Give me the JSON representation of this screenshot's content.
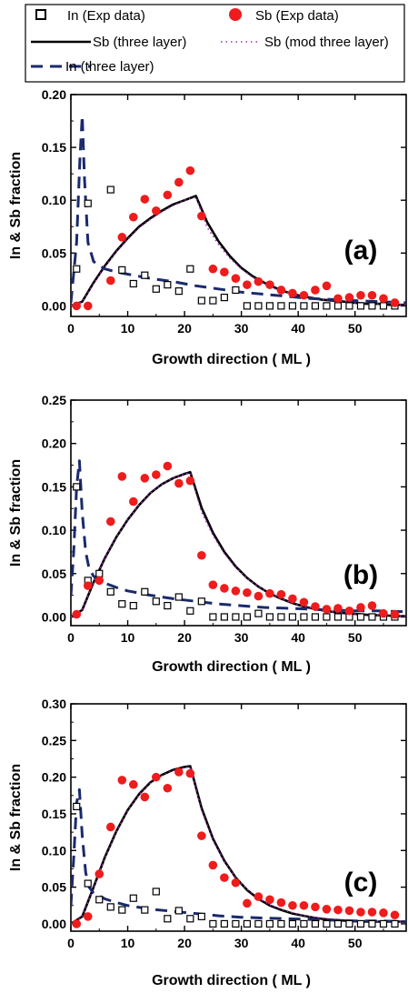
{
  "legend": {
    "entries": [
      {
        "label": "In (Exp data)",
        "marker": "open-square",
        "color": "#000000"
      },
      {
        "label": "Sb (Exp data)",
        "marker": "filled-circle",
        "color": "#ee1c1c"
      },
      {
        "label": "Sb (three layer)",
        "line": "solid",
        "color": "#000000"
      },
      {
        "label": "Sb (mod three layer)",
        "line": "dotted",
        "color": "#9b2fae"
      },
      {
        "label": "In (three layer)",
        "line": "dashed",
        "color": "#1a2a6c"
      }
    ]
  },
  "chart_data": [
    {
      "type": "line",
      "panel_label": "(a)",
      "xlabel": "Growth direction ( ML )",
      "ylabel": "In & Sb fraction",
      "xlim": [
        0,
        59
      ],
      "ylim": [
        -0.01,
        0.2
      ],
      "x_ticks": [
        0,
        10,
        20,
        30,
        40,
        50
      ],
      "y_ticks": [
        0.0,
        0.05,
        0.1,
        0.15,
        0.2
      ],
      "y_tick_labels": [
        "0.00",
        "0.05",
        "0.10",
        "0.15",
        "0.20"
      ],
      "series": [
        {
          "name": "In (Exp data)",
          "kind": "scatter",
          "marker": "open-square",
          "x": [
            1,
            3,
            7,
            9,
            11,
            13,
            15,
            17,
            19,
            21,
            23,
            25,
            27,
            29,
            31,
            33,
            35,
            37,
            39,
            41,
            43,
            45,
            47,
            49,
            51,
            53,
            55,
            57
          ],
          "y": [
            0.035,
            0.097,
            0.11,
            0.034,
            0.021,
            0.029,
            0.016,
            0.02,
            0.014,
            0.035,
            0.005,
            0.005,
            0.008,
            0.015,
            0,
            0,
            0,
            0,
            0,
            0,
            0,
            0,
            0,
            0,
            0,
            0,
            0,
            0
          ]
        },
        {
          "name": "Sb (Exp data)",
          "kind": "scatter",
          "marker": "filled-circle",
          "x": [
            1,
            3,
            7,
            9,
            11,
            13,
            15,
            17,
            19,
            21,
            23,
            25,
            27,
            29,
            31,
            33,
            35,
            37,
            39,
            41,
            43,
            45,
            47,
            49,
            51,
            53,
            55,
            57
          ],
          "y": [
            0,
            0,
            0.024,
            0.065,
            0.084,
            0.101,
            0.09,
            0.105,
            0.117,
            0.128,
            0.085,
            0.035,
            0.032,
            0.026,
            0.02,
            0.023,
            0.02,
            0.015,
            0.012,
            0.01,
            0.015,
            0.019,
            0.007,
            0.008,
            0.01,
            0.01,
            0.007,
            0.003
          ]
        },
        {
          "name": "Sb (three layer)",
          "kind": "line",
          "style": "solid",
          "x": [
            0,
            2,
            4,
            6,
            8,
            10,
            12,
            14,
            16,
            18,
            20,
            22,
            24,
            26,
            28,
            30,
            32,
            34,
            36,
            38,
            40,
            42,
            44,
            46,
            48,
            50,
            52,
            54,
            56,
            58,
            59
          ],
          "y": [
            0,
            0.004,
            0.022,
            0.038,
            0.052,
            0.064,
            0.075,
            0.083,
            0.09,
            0.096,
            0.1,
            0.104,
            0.079,
            0.061,
            0.047,
            0.036,
            0.028,
            0.022,
            0.017,
            0.013,
            0.01,
            0.008,
            0.006,
            0.005,
            0.004,
            0.003,
            0.002,
            0.002,
            0.001,
            0.001,
            0.001
          ]
        },
        {
          "name": "Sb (mod three layer)",
          "kind": "line",
          "style": "dotted",
          "x": [
            0,
            2,
            4,
            6,
            8,
            10,
            12,
            14,
            16,
            18,
            20,
            22,
            24,
            26,
            28,
            30,
            32,
            34,
            36,
            38,
            40,
            42,
            44,
            46,
            48,
            50,
            52,
            54,
            56,
            58,
            59
          ],
          "y": [
            0,
            0.004,
            0.021,
            0.037,
            0.051,
            0.063,
            0.074,
            0.082,
            0.089,
            0.095,
            0.1,
            0.103,
            0.074,
            0.058,
            0.045,
            0.035,
            0.027,
            0.021,
            0.016,
            0.013,
            0.01,
            0.008,
            0.006,
            0.005,
            0.004,
            0.003,
            0.002,
            0.002,
            0.001,
            0.001,
            0.001
          ]
        },
        {
          "name": "In (three layer)",
          "kind": "line",
          "style": "dashed",
          "x": [
            0,
            1,
            1.6,
            2,
            2.4,
            3,
            4,
            5,
            6,
            8,
            10,
            14,
            18,
            22,
            26,
            30,
            34,
            38,
            42,
            46,
            50,
            54,
            59
          ],
          "y": [
            0.003,
            0.06,
            0.14,
            0.18,
            0.12,
            0.06,
            0.042,
            0.038,
            0.035,
            0.032,
            0.03,
            0.026,
            0.023,
            0.019,
            0.016,
            0.013,
            0.011,
            0.009,
            0.007,
            0.006,
            0.005,
            0.004,
            0.003
          ]
        }
      ]
    },
    {
      "type": "line",
      "panel_label": "(b)",
      "xlabel": "Growth direction ( ML )",
      "ylabel": "In & Sb  fraction",
      "xlim": [
        0,
        59
      ],
      "ylim": [
        -0.01,
        0.25
      ],
      "x_ticks": [
        0,
        10,
        20,
        30,
        40,
        50
      ],
      "y_ticks": [
        0.0,
        0.05,
        0.1,
        0.15,
        0.2,
        0.25
      ],
      "y_tick_labels": [
        "0.00",
        "0.05",
        "0.10",
        "0.15",
        "0.20",
        "0.25"
      ],
      "series": [
        {
          "name": "In (Exp data)",
          "kind": "scatter",
          "marker": "open-square",
          "x": [
            1,
            3,
            5,
            7,
            9,
            11,
            13,
            15,
            17,
            19,
            21,
            23,
            25,
            27,
            29,
            31,
            33,
            35,
            37,
            39,
            41,
            43,
            45,
            47,
            49,
            51,
            53,
            55,
            57
          ],
          "y": [
            0.15,
            0.042,
            0.05,
            0.029,
            0.015,
            0.013,
            0.029,
            0.018,
            0.013,
            0.023,
            0.007,
            0.018,
            0,
            0,
            0,
            0,
            0.004,
            0,
            0,
            0,
            0,
            0,
            0,
            0,
            0,
            0,
            0,
            0,
            0
          ]
        },
        {
          "name": "Sb (Exp data)",
          "kind": "scatter",
          "marker": "filled-circle",
          "x": [
            1,
            3,
            5,
            7,
            9,
            11,
            13,
            15,
            17,
            19,
            21,
            23,
            25,
            27,
            29,
            31,
            33,
            35,
            37,
            39,
            41,
            43,
            45,
            47,
            49,
            51,
            53,
            55,
            57
          ],
          "y": [
            0.003,
            0.036,
            0.042,
            0.11,
            0.162,
            0.133,
            0.16,
            0.164,
            0.174,
            0.154,
            0.157,
            0.071,
            0.037,
            0.033,
            0.03,
            0.028,
            0.024,
            0.027,
            0.026,
            0.021,
            0.017,
            0.012,
            0.009,
            0.01,
            0.007,
            0.011,
            0.013,
            0.004,
            0.003
          ]
        },
        {
          "name": "Sb (three layer)",
          "kind": "line",
          "style": "solid",
          "x": [
            0,
            2,
            4,
            6,
            8,
            10,
            12,
            14,
            16,
            18,
            20,
            21,
            23,
            25,
            27,
            29,
            31,
            33,
            35,
            37,
            39,
            41,
            43,
            45,
            47,
            49,
            51,
            53,
            55,
            57,
            59
          ],
          "y": [
            0,
            0.008,
            0.04,
            0.068,
            0.092,
            0.112,
            0.129,
            0.143,
            0.153,
            0.16,
            0.165,
            0.167,
            0.126,
            0.097,
            0.075,
            0.058,
            0.045,
            0.035,
            0.027,
            0.021,
            0.016,
            0.012,
            0.009,
            0.007,
            0.005,
            0.004,
            0.003,
            0.002,
            0.002,
            0.001,
            0.001
          ]
        },
        {
          "name": "Sb (mod three layer)",
          "kind": "line",
          "style": "dotted",
          "x": [
            0,
            2,
            4,
            6,
            8,
            10,
            12,
            14,
            16,
            18,
            20,
            21,
            23,
            25,
            27,
            29,
            31,
            33,
            35,
            37,
            39,
            41,
            43,
            45,
            47,
            49,
            51,
            53,
            55,
            57,
            59
          ],
          "y": [
            0,
            0.008,
            0.04,
            0.068,
            0.092,
            0.112,
            0.129,
            0.143,
            0.153,
            0.16,
            0.165,
            0.166,
            0.121,
            0.094,
            0.073,
            0.057,
            0.045,
            0.035,
            0.027,
            0.021,
            0.016,
            0.012,
            0.009,
            0.007,
            0.005,
            0.004,
            0.003,
            0.002,
            0.002,
            0.001,
            0.001
          ]
        },
        {
          "name": "In (three layer)",
          "kind": "line",
          "style": "dashed",
          "x": [
            0,
            0.5,
            1,
            1.5,
            2,
            2.6,
            3.2,
            4,
            5,
            6,
            8,
            10,
            14,
            18,
            22,
            26,
            30,
            34,
            38,
            42,
            46,
            50,
            54,
            59
          ],
          "y": [
            0.025,
            0.075,
            0.15,
            0.18,
            0.12,
            0.075,
            0.056,
            0.047,
            0.042,
            0.039,
            0.034,
            0.03,
            0.025,
            0.021,
            0.018,
            0.015,
            0.013,
            0.011,
            0.01,
            0.009,
            0.008,
            0.007,
            0.007,
            0.006
          ]
        }
      ]
    },
    {
      "type": "line",
      "panel_label": "(c)",
      "xlabel": "Growth direction ( ML )",
      "ylabel": "In & Sb fraction",
      "xlim": [
        0,
        59
      ],
      "ylim": [
        -0.01,
        0.3
      ],
      "x_ticks": [
        0,
        10,
        20,
        30,
        40,
        50
      ],
      "y_ticks": [
        0.0,
        0.05,
        0.1,
        0.15,
        0.2,
        0.25,
        0.3
      ],
      "y_tick_labels": [
        "0.00",
        "0.05",
        "0.10",
        "0.15",
        "0.20",
        "0.25",
        "0.30"
      ],
      "series": [
        {
          "name": "In (Exp data)",
          "kind": "scatter",
          "marker": "open-square",
          "x": [
            1,
            3,
            5,
            7,
            9,
            11,
            13,
            15,
            17,
            19,
            21,
            23,
            25,
            27,
            29,
            31,
            33,
            35,
            37,
            39,
            41,
            43,
            45,
            47,
            49,
            51,
            53,
            55,
            57
          ],
          "y": [
            0.16,
            0.055,
            0.033,
            0.023,
            0.019,
            0.035,
            0.019,
            0.044,
            0.007,
            0.018,
            0.007,
            0.01,
            0,
            0,
            0,
            0,
            0,
            0,
            0,
            0,
            0,
            0,
            0,
            0,
            0,
            0,
            0,
            0,
            0
          ]
        },
        {
          "name": "Sb (Exp data)",
          "kind": "scatter",
          "marker": "filled-circle",
          "x": [
            1,
            3,
            5,
            7,
            9,
            11,
            13,
            15,
            17,
            19,
            21,
            23,
            25,
            27,
            29,
            31,
            33,
            35,
            37,
            39,
            41,
            43,
            45,
            47,
            49,
            51,
            53,
            55,
            57
          ],
          "y": [
            0,
            0.01,
            0.068,
            0.132,
            0.196,
            0.19,
            0.173,
            0.2,
            0.185,
            0.207,
            0.205,
            0.12,
            0.08,
            0.063,
            0.056,
            0.028,
            0.037,
            0.033,
            0.029,
            0.025,
            0.025,
            0.023,
            0.02,
            0.019,
            0.018,
            0.016,
            0.016,
            0.015,
            0.012
          ]
        },
        {
          "name": "Sb (three layer)",
          "kind": "line",
          "style": "solid",
          "x": [
            0,
            2,
            4,
            6,
            8,
            10,
            12,
            14,
            16,
            18,
            20,
            21,
            23,
            25,
            27,
            29,
            31,
            33,
            35,
            37,
            39,
            41,
            43,
            45,
            47,
            49,
            51,
            53,
            55,
            57,
            59
          ],
          "y": [
            0,
            0.01,
            0.05,
            0.091,
            0.126,
            0.155,
            0.177,
            0.193,
            0.203,
            0.21,
            0.214,
            0.215,
            0.158,
            0.116,
            0.086,
            0.063,
            0.046,
            0.034,
            0.025,
            0.019,
            0.014,
            0.011,
            0.008,
            0.006,
            0.005,
            0.004,
            0.003,
            0.003,
            0.003,
            0.003,
            0.003
          ]
        },
        {
          "name": "Sb (mod three layer)",
          "kind": "line",
          "style": "dotted",
          "x": [
            0,
            2,
            4,
            6,
            8,
            10,
            12,
            14,
            16,
            18,
            20,
            21,
            23,
            25,
            27,
            29,
            31,
            33,
            35,
            37,
            39,
            41,
            43,
            45,
            47,
            49,
            51,
            53,
            55,
            57,
            59
          ],
          "y": [
            0,
            0.01,
            0.049,
            0.09,
            0.125,
            0.154,
            0.176,
            0.192,
            0.202,
            0.209,
            0.213,
            0.214,
            0.155,
            0.114,
            0.085,
            0.063,
            0.047,
            0.035,
            0.026,
            0.02,
            0.015,
            0.011,
            0.009,
            0.007,
            0.006,
            0.005,
            0.004,
            0.004,
            0.003,
            0.003,
            0.003
          ]
        },
        {
          "name": "In (three layer)",
          "kind": "line",
          "style": "dashed",
          "x": [
            0,
            0.5,
            1,
            1.5,
            2,
            2.6,
            3.2,
            4,
            5,
            6,
            8,
            10,
            14,
            18,
            22,
            26,
            30,
            34,
            38,
            42,
            46,
            50,
            54,
            59
          ],
          "y": [
            0.025,
            0.09,
            0.165,
            0.183,
            0.12,
            0.07,
            0.05,
            0.042,
            0.038,
            0.034,
            0.029,
            0.025,
            0.02,
            0.017,
            0.014,
            0.011,
            0.009,
            0.008,
            0.007,
            0.006,
            0.005,
            0.004,
            0.004,
            0.003
          ]
        }
      ]
    }
  ]
}
